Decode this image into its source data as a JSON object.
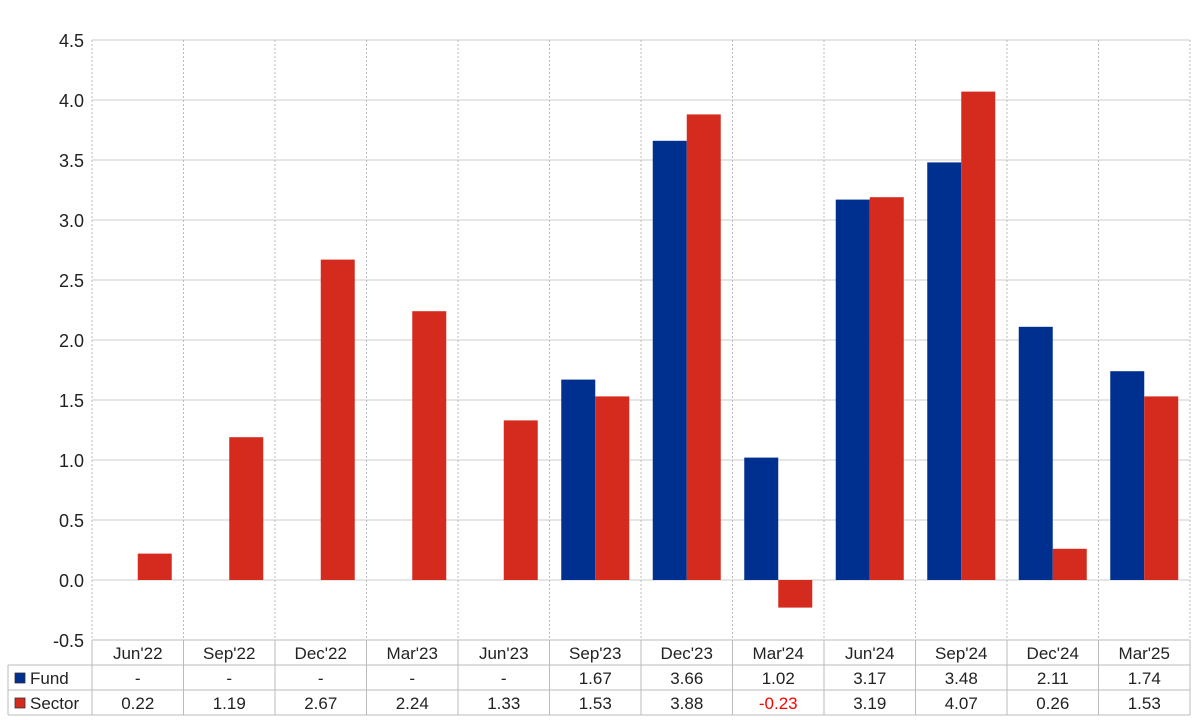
{
  "chart_data": {
    "type": "bar",
    "title": "",
    "xlabel": "",
    "ylabel": "",
    "ylim": [
      -0.5,
      4.5
    ],
    "ytick_step": 0.5,
    "grid": true,
    "legend_placement": "bottom-left-table",
    "categories": [
      "Jun'22",
      "Sep'22",
      "Dec'22",
      "Mar'23",
      "Jun'23",
      "Sep'23",
      "Dec'23",
      "Mar'24",
      "Jun'24",
      "Sep'24",
      "Dec'24",
      "Mar'25"
    ],
    "series": [
      {
        "name": "Fund",
        "color": "#00308f",
        "values": [
          null,
          null,
          null,
          null,
          null,
          1.67,
          3.66,
          1.02,
          3.17,
          3.48,
          2.11,
          1.74
        ],
        "labels": [
          "-",
          "-",
          "-",
          "-",
          "-",
          "1.67",
          "3.66",
          "1.02",
          "3.17",
          "3.48",
          "2.11",
          "1.74"
        ]
      },
      {
        "name": "Sector",
        "color": "#d52b1e",
        "values": [
          0.22,
          1.19,
          2.67,
          2.24,
          1.33,
          1.53,
          3.88,
          -0.23,
          3.19,
          4.07,
          0.26,
          1.53
        ],
        "labels": [
          "0.22",
          "1.19",
          "2.67",
          "2.24",
          "1.33",
          "1.53",
          "3.88",
          "-0.23",
          "3.19",
          "4.07",
          "0.26",
          "1.53"
        ]
      }
    ],
    "negative_label_color": "#ff0000"
  }
}
